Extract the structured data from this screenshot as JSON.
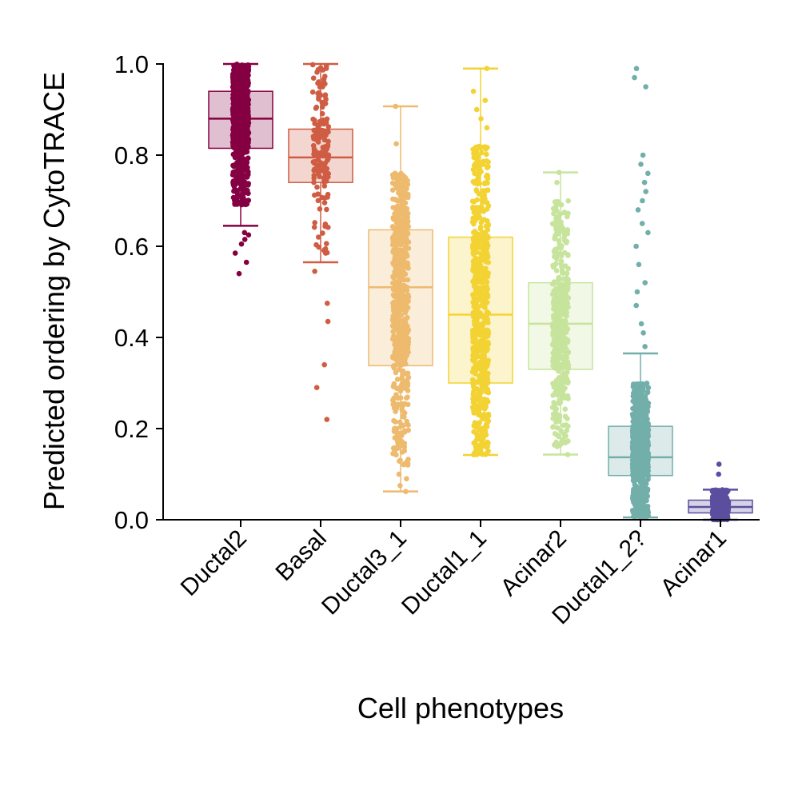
{
  "chart_data": {
    "type": "box",
    "title": "",
    "xlabel": "Cell phenotypes",
    "ylabel": "Predicted ordering by CytoTRACE",
    "ylim": [
      0,
      1
    ],
    "yticks": [
      "0.0",
      "0.2",
      "0.4",
      "0.6",
      "0.8",
      "1.0"
    ],
    "grid": false,
    "legend": "none",
    "categories": [
      "Ductal2",
      "Basal",
      "Ductal3_1",
      "Ductal1_1",
      "Acinar2",
      "Ductal1_2?",
      "Acinar1"
    ],
    "series": [
      {
        "category": "Ductal2",
        "color": "#850042",
        "min": 0.645,
        "q1": 0.815,
        "median": 0.88,
        "q3": 0.94,
        "max": 1.0,
        "point_count": 700,
        "points_low": 0.69,
        "points_high": 1.0,
        "outliers": [
          0.54,
          0.565,
          0.585,
          0.605,
          0.615,
          0.625,
          0.63
        ]
      },
      {
        "category": "Basal",
        "color": "#cf5d43",
        "min": 0.565,
        "q1": 0.74,
        "median": 0.795,
        "q3": 0.857,
        "max": 1.0,
        "point_count": 160,
        "points_low": 0.58,
        "points_high": 1.0,
        "outliers": [
          0.22,
          0.29,
          0.34,
          0.435,
          0.475,
          0.545
        ]
      },
      {
        "category": "Ductal3_1",
        "color": "#edba6e",
        "min": 0.062,
        "q1": 0.338,
        "median": 0.51,
        "q3": 0.636,
        "max": 0.907,
        "point_count": 600,
        "points_low": 0.12,
        "points_high": 0.76,
        "outliers": [
          0.062,
          0.075,
          0.09,
          0.1,
          0.825,
          0.907
        ]
      },
      {
        "category": "Ductal1_1",
        "color": "#f3d333",
        "min": 0.142,
        "q1": 0.3,
        "median": 0.45,
        "q3": 0.62,
        "max": 0.99,
        "point_count": 650,
        "points_low": 0.142,
        "points_high": 0.82,
        "outliers": [
          0.86,
          0.88,
          0.9,
          0.92,
          0.94,
          0.99
        ]
      },
      {
        "category": "Acinar2",
        "color": "#c7e49c",
        "min": 0.143,
        "q1": 0.33,
        "median": 0.43,
        "q3": 0.52,
        "max": 0.762,
        "point_count": 500,
        "points_low": 0.16,
        "points_high": 0.7,
        "outliers": [
          0.143,
          0.17,
          0.74,
          0.762
        ]
      },
      {
        "category": "Ductal1_2?",
        "color": "#72aeaa",
        "min": 0.005,
        "q1": 0.097,
        "median": 0.137,
        "q3": 0.205,
        "max": 0.365,
        "point_count": 750,
        "points_low": 0.005,
        "points_high": 0.3,
        "outliers": [
          0.38,
          0.41,
          0.43,
          0.47,
          0.5,
          0.52,
          0.56,
          0.6,
          0.63,
          0.65,
          0.68,
          0.7,
          0.72,
          0.74,
          0.76,
          0.78,
          0.8,
          0.95,
          0.97,
          0.99
        ]
      },
      {
        "category": "Acinar1",
        "color": "#5b4e9e",
        "min": 0.0,
        "q1": 0.015,
        "median": 0.028,
        "q3": 0.043,
        "max": 0.066,
        "point_count": 400,
        "points_low": 0.0,
        "points_high": 0.066,
        "outliers": [
          0.1,
          0.122
        ]
      }
    ]
  }
}
